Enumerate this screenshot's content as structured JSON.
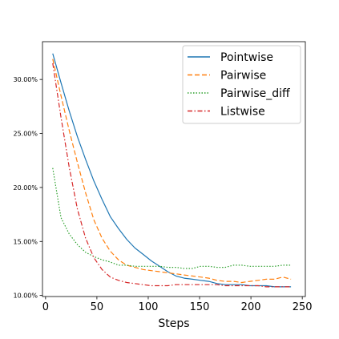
{
  "chart_data": {
    "type": "line",
    "title": "",
    "xlabel": "Steps",
    "ylabel": "",
    "xlim": [
      -3,
      253
    ],
    "ylim": [
      0.099,
      0.335
    ],
    "xticks": [
      0,
      50,
      100,
      150,
      200,
      250
    ],
    "xtick_labels": [
      "0",
      "50",
      "100",
      "150",
      "200",
      "250"
    ],
    "yticks": [
      0.1,
      0.15,
      0.2,
      0.25,
      0.3
    ],
    "ytick_labels": [
      "10.00%",
      "15.00%",
      "20.00%",
      "25.00%",
      "30.00%"
    ],
    "grid": false,
    "legend_position": "upper-right",
    "series": [
      {
        "name": "Pointwise",
        "color": "#1f77b4",
        "dash": "solid",
        "x": [
          7,
          15,
          23,
          31,
          39,
          47,
          55,
          63,
          71,
          79,
          87,
          95,
          103,
          111,
          119,
          127,
          135,
          143,
          151,
          159,
          167,
          175,
          183,
          191,
          199,
          207,
          215,
          223,
          231,
          239
        ],
        "y": [
          0.324,
          0.297,
          0.271,
          0.247,
          0.226,
          0.206,
          0.189,
          0.173,
          0.162,
          0.152,
          0.144,
          0.138,
          0.132,
          0.127,
          0.122,
          0.118,
          0.116,
          0.115,
          0.114,
          0.113,
          0.111,
          0.11,
          0.11,
          0.11,
          0.109,
          0.109,
          0.109,
          0.108,
          0.108,
          0.108
        ]
      },
      {
        "name": "Pairwise",
        "color": "#ff7f0e",
        "dash": "dashed",
        "x": [
          7,
          15,
          23,
          31,
          39,
          47,
          55,
          63,
          71,
          79,
          87,
          95,
          103,
          111,
          119,
          127,
          135,
          143,
          151,
          159,
          167,
          175,
          183,
          191,
          199,
          207,
          215,
          223,
          231,
          239
        ],
        "y": [
          0.319,
          0.285,
          0.253,
          0.223,
          0.195,
          0.17,
          0.153,
          0.141,
          0.133,
          0.128,
          0.126,
          0.124,
          0.123,
          0.122,
          0.121,
          0.12,
          0.119,
          0.118,
          0.117,
          0.116,
          0.114,
          0.113,
          0.113,
          0.112,
          0.113,
          0.114,
          0.115,
          0.115,
          0.117,
          0.115
        ]
      },
      {
        "name": "Pairwise_diff",
        "color": "#2ca02c",
        "dash": "dotted",
        "x": [
          7,
          15,
          23,
          31,
          39,
          47,
          55,
          63,
          71,
          79,
          87,
          95,
          103,
          111,
          119,
          127,
          135,
          143,
          151,
          159,
          167,
          175,
          183,
          191,
          199,
          207,
          215,
          223,
          231,
          239
        ],
        "y": [
          0.218,
          0.172,
          0.157,
          0.147,
          0.14,
          0.136,
          0.133,
          0.131,
          0.128,
          0.128,
          0.127,
          0.127,
          0.127,
          0.127,
          0.126,
          0.126,
          0.125,
          0.125,
          0.127,
          0.127,
          0.126,
          0.126,
          0.128,
          0.128,
          0.127,
          0.127,
          0.127,
          0.127,
          0.128,
          0.128
        ]
      },
      {
        "name": "Listwise",
        "color": "#d62728",
        "dash": "dashdot",
        "x": [
          7,
          15,
          23,
          31,
          39,
          47,
          55,
          63,
          71,
          79,
          87,
          95,
          103,
          111,
          119,
          127,
          135,
          143,
          151,
          159,
          167,
          175,
          183,
          191,
          199,
          207,
          215,
          223,
          231,
          239
        ],
        "y": [
          0.315,
          0.265,
          0.219,
          0.18,
          0.153,
          0.135,
          0.124,
          0.117,
          0.114,
          0.112,
          0.111,
          0.11,
          0.109,
          0.109,
          0.109,
          0.11,
          0.11,
          0.11,
          0.11,
          0.11,
          0.11,
          0.109,
          0.109,
          0.109,
          0.109,
          0.109,
          0.108,
          0.108,
          0.108,
          0.108
        ]
      }
    ]
  }
}
